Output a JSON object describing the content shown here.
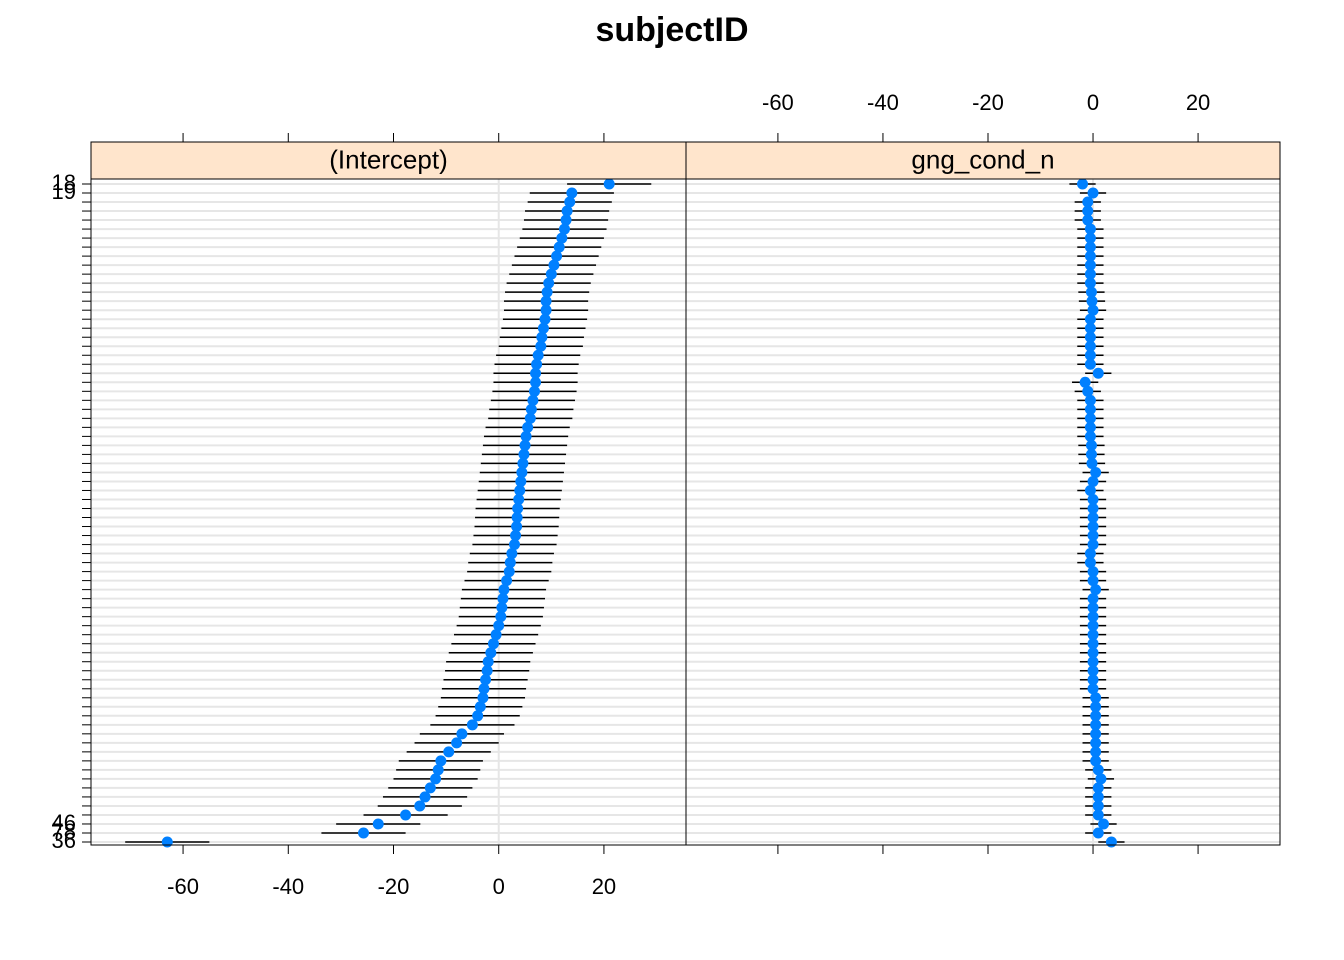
{
  "chart_data": {
    "type": "dotplot",
    "title": "subjectID",
    "categories": [
      "18",
      "19",
      null,
      null,
      null,
      null,
      null,
      null,
      null,
      null,
      null,
      null,
      null,
      null,
      null,
      null,
      null,
      null,
      null,
      null,
      null,
      null,
      null,
      null,
      null,
      null,
      null,
      null,
      null,
      null,
      null,
      null,
      null,
      null,
      null,
      null,
      null,
      null,
      null,
      null,
      null,
      null,
      null,
      null,
      null,
      null,
      null,
      null,
      null,
      null,
      null,
      null,
      null,
      null,
      null,
      null,
      null,
      null,
      null,
      null,
      null,
      null,
      null,
      null,
      null,
      null,
      null,
      null,
      null,
      null,
      null,
      "46",
      "78",
      "36"
    ],
    "xlim": [
      -77.5,
      35.6
    ],
    "xticks": [
      -60,
      -40,
      -20,
      0,
      20
    ],
    "grid": true,
    "color": "#0080ff",
    "panels": [
      {
        "name": "(Intercept)",
        "error": 8,
        "values": [
          21,
          13.9,
          13.5,
          13,
          12.8,
          12.5,
          12,
          11.5,
          11,
          10.5,
          10,
          9.5,
          9.2,
          9,
          9,
          8.8,
          8.5,
          8.2,
          8,
          7.5,
          7.2,
          7,
          7,
          6.8,
          6.5,
          6.2,
          6,
          5.5,
          5.2,
          5,
          4.8,
          4.6,
          4.4,
          4.2,
          4,
          3.8,
          3.6,
          3.5,
          3.4,
          3.2,
          3,
          2.5,
          2.2,
          2,
          1.5,
          1,
          0.8,
          0.6,
          0.4,
          0,
          -0.5,
          -1,
          -1.5,
          -2,
          -2.2,
          -2.5,
          -2.8,
          -3,
          -3.5,
          -4,
          -5,
          -7,
          -8,
          -9.5,
          -11,
          -11.5,
          -12,
          -13,
          -14,
          -15,
          -17.7,
          -22.9,
          -25.7,
          -63
        ]
      },
      {
        "name": "gng_cond_n",
        "error": 2.5,
        "values": [
          -2,
          0,
          -1,
          -1,
          -1,
          -0.5,
          -0.5,
          -0.5,
          -0.5,
          -0.5,
          -0.5,
          -0.5,
          -0.3,
          -0.2,
          0,
          -0.5,
          -0.5,
          -0.5,
          -0.5,
          -0.5,
          -0.5,
          1,
          -1.5,
          -1,
          -0.5,
          -0.5,
          -0.5,
          -0.5,
          -0.5,
          -0.3,
          -0.3,
          -0.2,
          0.5,
          0,
          -0.5,
          0,
          0,
          0,
          0,
          0,
          0,
          -0.5,
          -0.5,
          0,
          0,
          0.5,
          0,
          0,
          0,
          0,
          0,
          0,
          0,
          0,
          0,
          0,
          0,
          0.5,
          0.5,
          0.5,
          0.5,
          0.5,
          0.5,
          0.5,
          0.5,
          1,
          1.5,
          1,
          1,
          1,
          1,
          2,
          1,
          3.5
        ]
      }
    ]
  }
}
